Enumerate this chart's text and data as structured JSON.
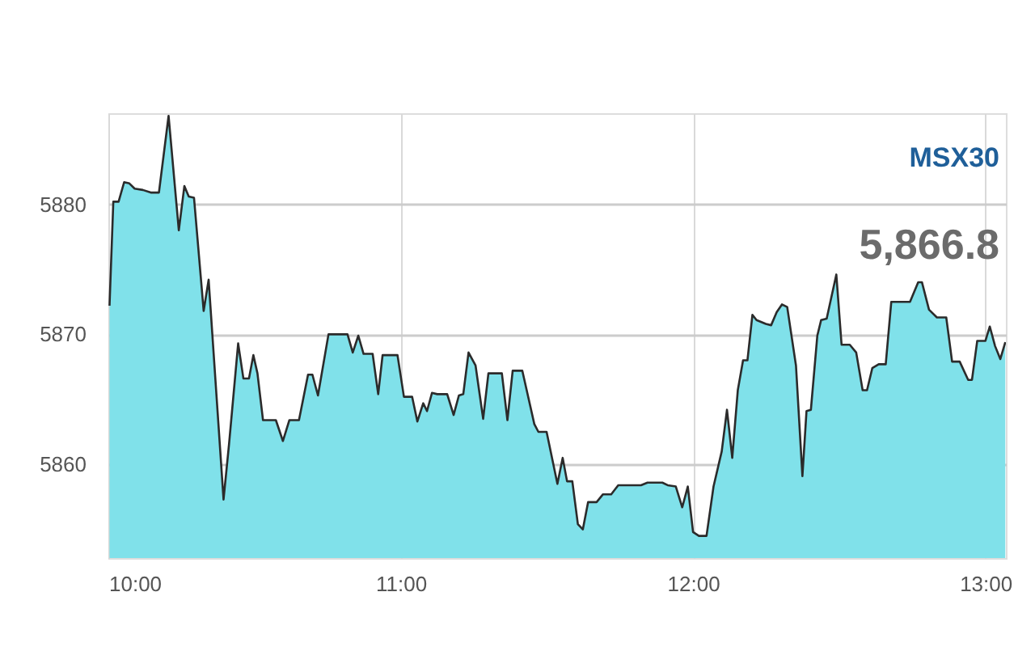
{
  "chart_data": {
    "type": "area",
    "annotations": [
      "MSX30",
      "5,866.8"
    ],
    "x": [
      10.004,
      10.017,
      10.035,
      10.054,
      10.072,
      10.09,
      10.118,
      10.145,
      10.173,
      10.206,
      10.241,
      10.26,
      10.275,
      10.293,
      10.326,
      10.343,
      10.394,
      10.413,
      10.444,
      10.462,
      10.481,
      10.496,
      10.51,
      10.529,
      10.573,
      10.597,
      10.619,
      10.652,
      10.683,
      10.698,
      10.717,
      10.753,
      10.818,
      10.836,
      10.855,
      10.873,
      10.904,
      10.923,
      10.938,
      10.989,
      11.011,
      11.039,
      11.057,
      11.077,
      11.09,
      11.107,
      11.125,
      11.159,
      11.181,
      11.199,
      11.214,
      11.232,
      11.256,
      11.282,
      11.3,
      11.346,
      11.365,
      11.383,
      11.416,
      11.457,
      11.471,
      11.499,
      11.536,
      11.554,
      11.569,
      11.587,
      11.606,
      11.623,
      11.641,
      11.67,
      11.692,
      11.72,
      11.744,
      11.822,
      11.844,
      11.895,
      11.913,
      11.941,
      11.963,
      11.982,
      12.0,
      12.02,
      12.046,
      12.07,
      12.098,
      12.116,
      12.134,
      12.153,
      12.171,
      12.186,
      12.203,
      12.217,
      12.249,
      12.267,
      12.286,
      12.304,
      12.322,
      12.352,
      12.374,
      12.388,
      12.403,
      12.425,
      12.438,
      12.457,
      12.49,
      12.508,
      12.536,
      12.558,
      12.58,
      12.595,
      12.613,
      12.635,
      12.659,
      12.678,
      12.742,
      12.77,
      12.783,
      12.807,
      12.834,
      12.866,
      12.886,
      12.912,
      12.941,
      12.954,
      12.972,
      13.0,
      13.015,
      13.033,
      13.051,
      13.068
    ],
    "series": [
      {
        "color": "#80e1ea",
        "values": [
          5872.2,
          5880.2,
          5880.2,
          5881.7,
          5881.6,
          5881.2,
          5881.1,
          5880.9,
          5880.9,
          5886.8,
          5878.0,
          5881.4,
          5880.6,
          5880.5,
          5871.8,
          5874.2,
          5857.3,
          5861.6,
          5869.3,
          5866.6,
          5866.6,
          5868.4,
          5867.0,
          5863.4,
          5863.4,
          5861.8,
          5863.4,
          5863.4,
          5866.9,
          5866.9,
          5865.3,
          5870.0,
          5870.0,
          5868.6,
          5869.9,
          5868.5,
          5868.5,
          5865.4,
          5868.4,
          5868.4,
          5865.2,
          5865.2,
          5863.3,
          5864.7,
          5864.1,
          5865.5,
          5865.4,
          5865.4,
          5863.8,
          5865.3,
          5865.4,
          5868.6,
          5867.6,
          5863.5,
          5867.0,
          5867.0,
          5863.4,
          5867.2,
          5867.2,
          5863.1,
          5862.5,
          5862.5,
          5858.5,
          5860.5,
          5858.7,
          5858.7,
          5855.4,
          5855.0,
          5857.1,
          5857.1,
          5857.7,
          5857.7,
          5858.4,
          5858.4,
          5858.6,
          5858.6,
          5858.4,
          5858.3,
          5856.7,
          5858.3,
          5854.8,
          5854.5,
          5854.5,
          5858.3,
          5861.0,
          5864.2,
          5860.5,
          5865.7,
          5868.0,
          5868.0,
          5871.5,
          5871.1,
          5870.8,
          5870.7,
          5871.7,
          5872.3,
          5872.1,
          5867.6,
          5859.1,
          5864.1,
          5864.2,
          5869.9,
          5871.1,
          5871.2,
          5874.6,
          5869.2,
          5869.2,
          5868.6,
          5865.7,
          5865.7,
          5867.4,
          5867.7,
          5867.7,
          5872.5,
          5872.5,
          5874.0,
          5874.0,
          5871.9,
          5871.3,
          5871.3,
          5867.9,
          5867.9,
          5866.5,
          5866.5,
          5869.5,
          5869.5,
          5870.6,
          5869.1,
          5868.1,
          5869.4
        ]
      }
    ],
    "xlim": [
      10,
      13.07
    ],
    "xticks": [
      {
        "value": 10,
        "label": "10:00"
      },
      {
        "value": 11,
        "label": "11:00"
      },
      {
        "value": 12,
        "label": "12:00"
      },
      {
        "value": 13,
        "label": "13:00"
      }
    ],
    "ylim": [
      5852.8,
      5887
    ],
    "yticks": [
      5860,
      5870,
      5880
    ],
    "grid": true
  }
}
